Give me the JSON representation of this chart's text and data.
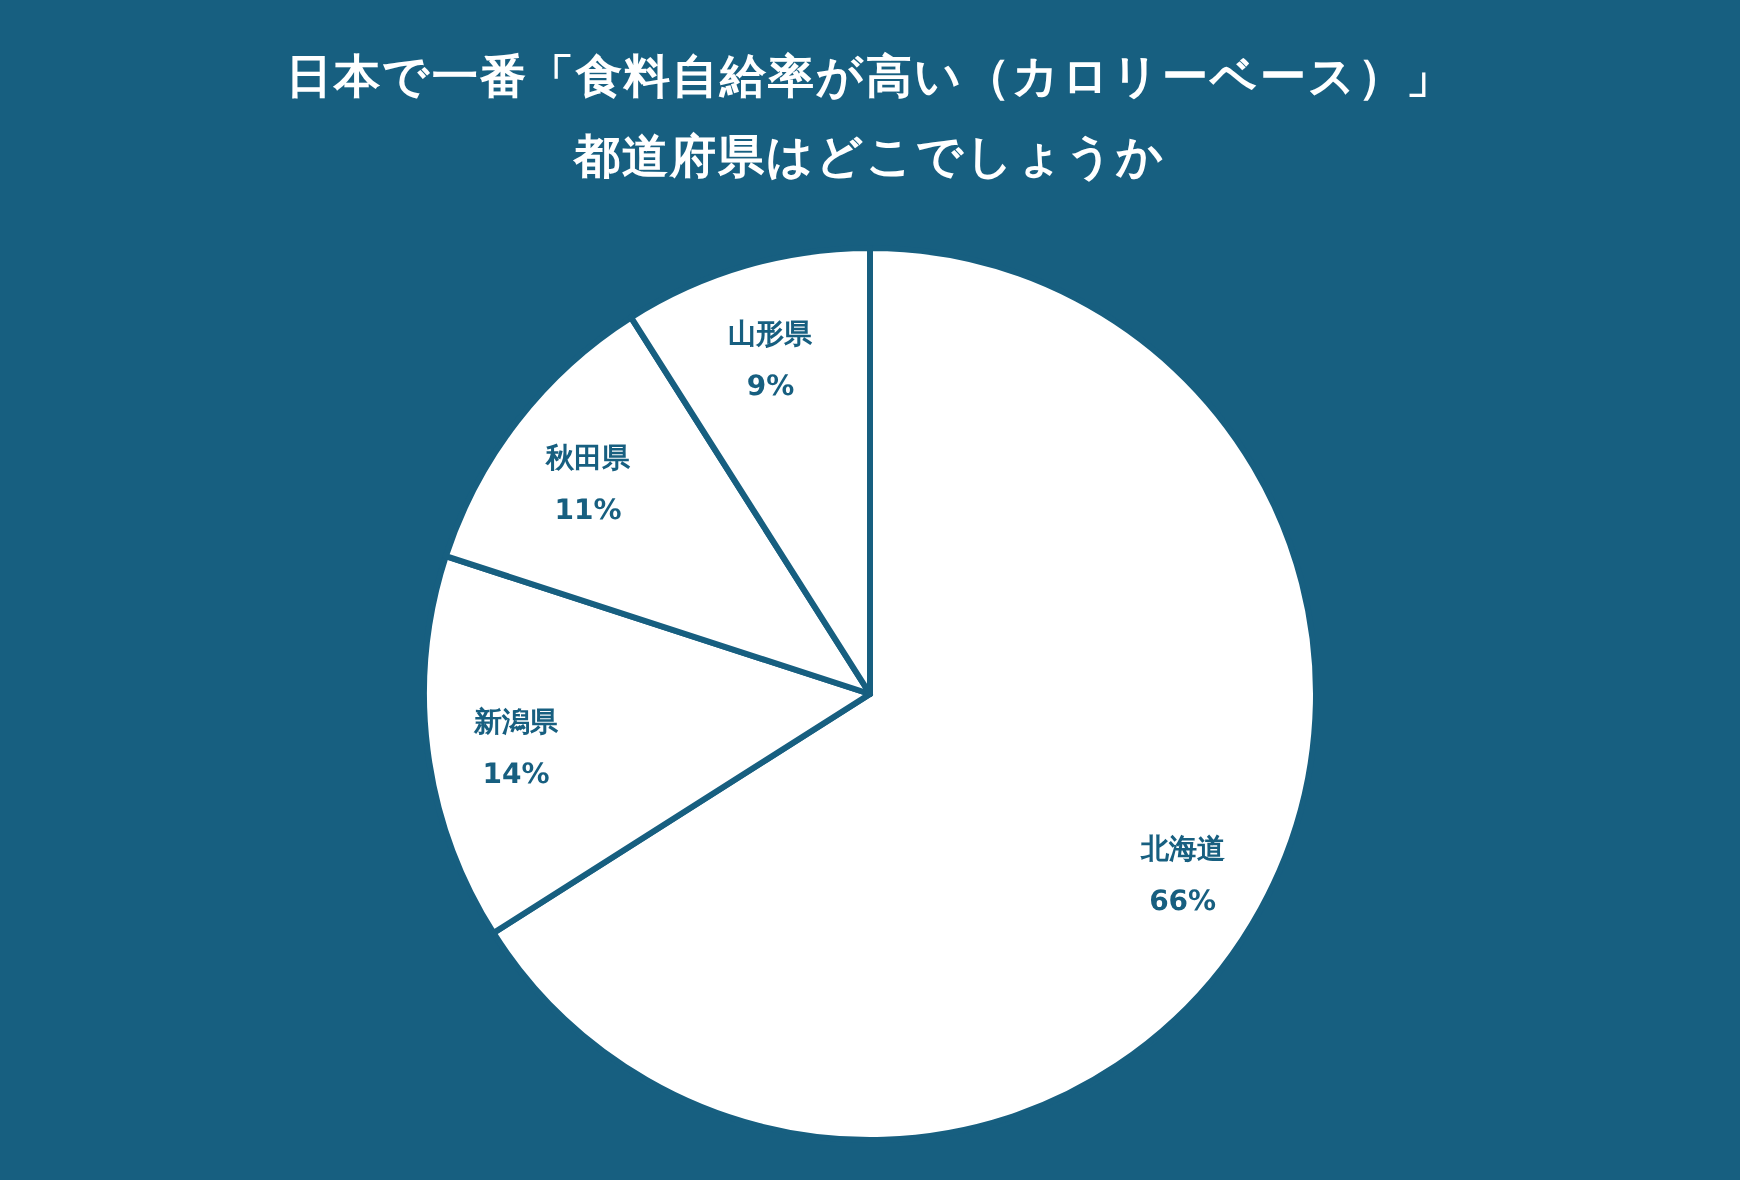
{
  "chart_data": {
    "type": "pie",
    "title": "日本で一番「食料自給率が高い（カロリーベース）」都道府県はどこでしょうか",
    "categories": [
      "北海道",
      "新潟県",
      "秋田県",
      "山形県"
    ],
    "values": [
      66,
      14,
      11,
      9
    ],
    "value_labels": [
      "66%",
      "14%",
      "11%",
      "9%"
    ],
    "colors": [
      "#ffffff",
      "#ffffff",
      "#ffffff",
      "#ffffff"
    ]
  }
}
